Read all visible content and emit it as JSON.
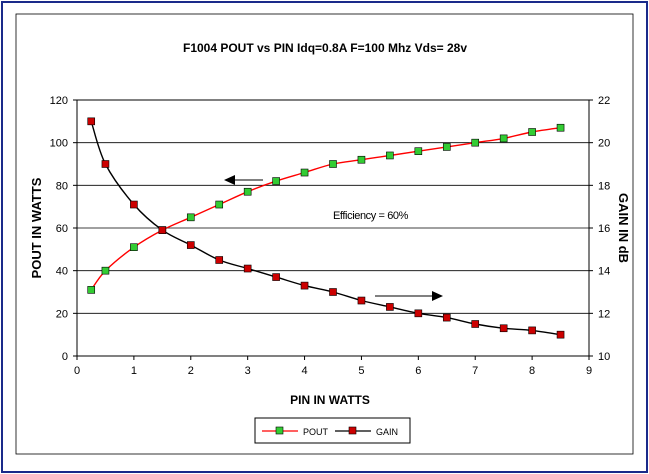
{
  "chart_data": {
    "type": "line",
    "title": "F1004 POUT vs PIN   Idq=0.8A  F=100 Mhz  Vds= 28v",
    "xlabel": "PIN  IN  WATTS",
    "ylabel_left": "POUT  IN  WATTS",
    "ylabel_right": "GAIN IN dB",
    "xlim": [
      0,
      9
    ],
    "ylim_left": [
      0,
      120
    ],
    "ylim_right": [
      10,
      22
    ],
    "x_ticks": [
      "0",
      "1",
      "2",
      "3",
      "4",
      "5",
      "6",
      "7",
      "8",
      "9"
    ],
    "y_left_ticks": [
      "0",
      "20",
      "40",
      "60",
      "80",
      "100",
      "120"
    ],
    "y_right_ticks": [
      "10",
      "12",
      "14",
      "16",
      "18",
      "20",
      "22"
    ],
    "grid": "horizontal",
    "legend_position": "bottom",
    "annotation": "Efficiency = 60%",
    "series": [
      {
        "name": "POUT",
        "axis": "left",
        "line_color": "#ff0000",
        "marker_color": "#33cc33",
        "x": [
          0.25,
          0.5,
          1,
          1.5,
          2,
          2.5,
          3,
          3.5,
          4,
          4.5,
          5,
          5.5,
          6,
          6.5,
          7,
          7.5,
          8,
          8.5
        ],
        "y": [
          31,
          40,
          51,
          59,
          65,
          71,
          77,
          82,
          86,
          90,
          92,
          94,
          96,
          98,
          100,
          102,
          105,
          107
        ]
      },
      {
        "name": "GAIN",
        "axis": "right",
        "line_color": "#000000",
        "marker_color": "#cc0000",
        "x": [
          0.25,
          0.5,
          1,
          1.5,
          2,
          2.5,
          3,
          3.5,
          4,
          4.5,
          5,
          5.5,
          6,
          6.5,
          7,
          7.5,
          8,
          8.5
        ],
        "y": [
          21.0,
          19.0,
          17.1,
          15.9,
          15.2,
          14.5,
          14.1,
          13.7,
          13.3,
          13.0,
          12.6,
          12.3,
          12.0,
          11.8,
          11.5,
          11.3,
          11.2,
          11.0
        ]
      }
    ]
  }
}
